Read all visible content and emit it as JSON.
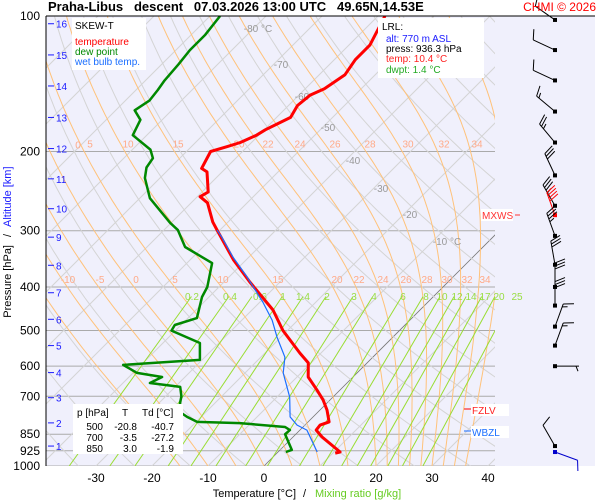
{
  "header": {
    "title": "Praha-Libus   descent   07.03.2026 13:00 UTC   49.65N,14.53E",
    "copyright": "CHMI © 2026"
  },
  "legend": {
    "heading": "SKEW-T",
    "items": [
      {
        "label": "temperature",
        "color": "#ff0000"
      },
      {
        "label": "dew point",
        "color": "#008800"
      },
      {
        "label": "wet bulb temp.",
        "color": "#1a6eff"
      }
    ]
  },
  "lrl": {
    "heading": "LRL:",
    "alt": "alt: 770 m ASL",
    "press": "press: 936.3 hPa",
    "temp": "temp: 10.4 °C",
    "dwpt": "dwpt: 1.4 °C"
  },
  "levels_table": {
    "headers": [
      "p [hPa]",
      "T",
      "Td [°C]"
    ],
    "rows": [
      [
        "500",
        "-20.8",
        "-40.7"
      ],
      [
        "700",
        "-3.5",
        "-27.2"
      ],
      [
        "850",
        "3.0",
        "-1.9"
      ]
    ]
  },
  "markers": {
    "mxws": "MXWS",
    "fzlv": "FZLV",
    "wbzl": "WBZL"
  },
  "chart_data": {
    "type": "line",
    "subtype": "skew-t log-p",
    "xlabel": "Temperature [°C]",
    "xlabel2": "Mixing ratio [g/kg]",
    "ylabel": "Pressure [hPa]",
    "ylabel2": "Altitude [km]",
    "xlim": [
      -35,
      45
    ],
    "ylim": [
      1000,
      100
    ],
    "y_scale": "log",
    "x_ticks": [
      "-30",
      "-20",
      "-10",
      "0",
      "10",
      "20",
      "30",
      "40"
    ],
    "pressure_ticks": [
      "100",
      "200",
      "300",
      "400",
      "500",
      "600",
      "700",
      "850",
      "925",
      "1000"
    ],
    "altitude_ticks": [
      "1",
      "2",
      "3",
      "4",
      "5",
      "6",
      "7",
      "8",
      "9",
      "10",
      "11",
      "12",
      "13",
      "14",
      "15",
      "16"
    ],
    "altitude_tick_pressures": [
      903,
      802,
      705,
      620,
      540,
      472,
      412,
      358,
      310,
      268,
      230,
      197,
      168,
      143,
      122,
      104
    ],
    "isotherm_labels": [
      "-80 °C",
      "-70",
      "-60",
      "-50",
      "-40",
      "-30",
      "-20",
      "-10 °C"
    ],
    "isotherm_label_values": [
      -80,
      -70,
      -60,
      -50,
      -40,
      -30,
      -20,
      -10
    ],
    "moist_adiabat_labels_400": [
      "-10",
      "-5",
      "0",
      "5",
      "10",
      "15",
      "20",
      "22",
      "24",
      "26",
      "28",
      "30",
      "32",
      "34"
    ],
    "moist_adiabat_labels_200": [
      "0",
      "5",
      "10",
      "15",
      "20",
      "22",
      "24",
      "26",
      "28",
      "30",
      "32",
      "34"
    ],
    "mixing_ratio_labels": [
      "0.2",
      "0.4",
      "0.6",
      "1",
      "1.4",
      "2",
      "3",
      "4",
      "6",
      "8",
      "10",
      "12",
      "14",
      "17",
      "20",
      "25"
    ],
    "series": [
      {
        "name": "temperature",
        "color": "#ff0000",
        "points_p_T": [
          [
            936,
            10.4
          ],
          [
            931,
            11.1
          ],
          [
            862,
            5.2
          ],
          [
            832,
            2.9
          ],
          [
            811,
            2.7
          ],
          [
            798,
            3.75
          ],
          [
            751,
            1.25
          ],
          [
            713,
            -1.25
          ],
          [
            678,
            -4.1
          ],
          [
            634,
            -8.0
          ],
          [
            590,
            -10.5
          ],
          [
            561,
            -13.75
          ],
          [
            500,
            -20.8
          ],
          [
            450,
            -26.25
          ],
          [
            423,
            -30.2
          ],
          [
            390,
            -35.4
          ],
          [
            348,
            -42.3
          ],
          [
            299,
            -50.5
          ],
          [
            287,
            -52.7
          ],
          [
            260,
            -57.1
          ],
          [
            252,
            -59.5
          ],
          [
            246,
            -58.9
          ],
          [
            222,
            -62.7
          ],
          [
            218,
            -64.3
          ],
          [
            200,
            -65.7
          ],
          [
            195,
            -63.6
          ],
          [
            191,
            -62
          ],
          [
            184,
            -60.4
          ],
          [
            179,
            -59.8
          ],
          [
            168,
            -57.5
          ],
          [
            158,
            -58.4
          ],
          [
            150,
            -58
          ],
          [
            145,
            -56.6
          ],
          [
            135,
            -55.4
          ],
          [
            125,
            -56.25
          ],
          [
            116,
            -56.25
          ],
          [
            100,
            -58.75
          ]
        ]
      },
      {
        "name": "dew point",
        "color": "#008800",
        "points_p_T": [
          [
            931,
            1.4
          ],
          [
            921,
            2.1
          ],
          [
            850,
            -1.9
          ],
          [
            832,
            -1.8
          ],
          [
            819,
            -3.2
          ],
          [
            803,
            -12
          ],
          [
            798,
            -19.8
          ],
          [
            778,
            -22.5
          ],
          [
            759,
            -24.6
          ],
          [
            724,
            -26.25
          ],
          [
            700,
            -27.2
          ],
          [
            667,
            -29.1
          ],
          [
            654,
            -35.2
          ],
          [
            634,
            -34.1
          ],
          [
            621,
            -39.3
          ],
          [
            596,
            -43.2
          ],
          [
            581,
            -30.4
          ],
          [
            533,
            -33.4
          ],
          [
            500,
            -40.7
          ],
          [
            486,
            -41.1
          ],
          [
            469,
            -38.4
          ],
          [
            421,
            -41.25
          ],
          [
            400,
            -42.1
          ],
          [
            354,
            -45.5
          ],
          [
            326,
            -53.2
          ],
          [
            299,
            -57.5
          ],
          [
            288,
            -60.2
          ],
          [
            254,
            -68.2
          ],
          [
            229,
            -72.7
          ],
          [
            217,
            -74.3
          ],
          [
            207,
            -74.8
          ],
          [
            198,
            -76.8
          ],
          [
            184,
            -82.5
          ],
          [
            170,
            -83.9
          ],
          [
            162,
            -86.6
          ],
          [
            154,
            -85.7
          ],
          [
            146,
            -86.1
          ],
          [
            139,
            -86.6
          ],
          [
            128,
            -87
          ],
          [
            119,
            -87.5
          ],
          [
            110,
            -87.5
          ],
          [
            100,
            -88.2
          ]
        ]
      },
      {
        "name": "wet bulb temp.",
        "color": "#1a6eff",
        "points_p_T": [
          [
            931,
            7.0
          ],
          [
            832,
            1.25
          ],
          [
            811,
            -1.4
          ],
          [
            778,
            -4.1
          ],
          [
            703,
            -7.7
          ],
          [
            621,
            -13.2
          ],
          [
            573,
            -15.7
          ],
          [
            517,
            -20.7
          ],
          [
            474,
            -24.6
          ],
          [
            432,
            -29.5
          ],
          [
            380,
            -36.8
          ],
          [
            343,
            -42.9
          ],
          [
            310,
            -48.4
          ],
          [
            299,
            -50.5
          ]
        ]
      }
    ],
    "wind_barbs_p_dir_kt": [
      [
        102,
        305,
        10
      ],
      [
        119,
        295,
        10
      ],
      [
        139,
        295,
        10
      ],
      [
        163,
        310,
        15
      ],
      [
        191,
        320,
        25
      ],
      [
        226,
        335,
        30
      ],
      [
        264,
        330,
        35
      ],
      [
        277,
        340,
        40,
        "max"
      ],
      [
        308,
        340,
        35
      ],
      [
        357,
        350,
        30
      ],
      [
        400,
        0,
        30
      ],
      [
        440,
        0,
        30
      ],
      [
        490,
        20,
        15
      ],
      [
        540,
        20,
        15
      ],
      [
        600,
        90,
        5
      ],
      [
        903,
        330,
        10
      ],
      [
        931,
        110,
        10,
        "surface"
      ]
    ],
    "grid": true
  }
}
